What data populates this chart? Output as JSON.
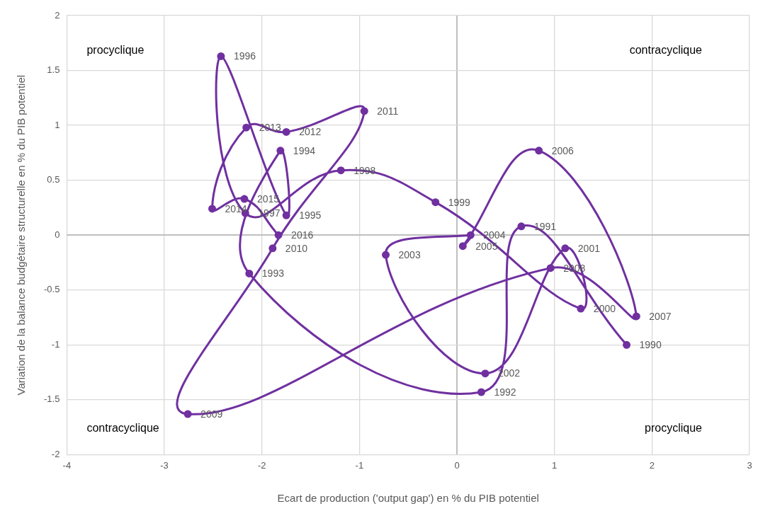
{
  "chart_data": {
    "type": "line",
    "xlabel": "Ecart de production ('output gap') en % du PIB potentiel",
    "ylabel": "Variation de la balance budgétaire structurelle en % du PIB potentiel",
    "x": [
      1.74,
      0.66,
      0.25,
      -2.13,
      -1.81,
      -1.75,
      -2.42,
      -2.17,
      -1.19,
      -0.22,
      1.27,
      1.11,
      0.29,
      -0.73,
      0.14,
      0.06,
      0.84,
      1.84,
      0.96,
      -2.76,
      -1.89,
      -0.95,
      -1.75,
      -2.16,
      -2.51,
      -2.18,
      -1.83
    ],
    "series": [
      {
        "color": "#7030a0",
        "values": [
          -1.0,
          0.08,
          -1.43,
          -0.35,
          0.77,
          0.18,
          1.63,
          0.2,
          0.59,
          0.3,
          -0.67,
          -0.12,
          -1.26,
          -0.18,
          0.0,
          -0.1,
          0.77,
          -0.74,
          -0.3,
          -1.63,
          -0.12,
          1.13,
          0.94,
          0.98,
          0.24,
          0.33,
          0.0
        ]
      }
    ],
    "xlim": [
      -4,
      3
    ],
    "xticks": [
      -4,
      -3,
      -2,
      -1,
      0,
      1,
      2,
      3
    ],
    "ylim": [
      -2,
      2
    ],
    "yticks": [
      -2,
      -1.5,
      -1,
      -0.5,
      0,
      0.5,
      1,
      1.5,
      2
    ],
    "grid": true,
    "legend": false,
    "marker": "circle",
    "line_style": "solid",
    "annotations": [
      "procyclique",
      "contracyclique",
      "contracyclique",
      "procyclique",
      {
        "text": "1990",
        "x": 1.74,
        "y": -1.0
      },
      {
        "text": "1991",
        "x": 0.66,
        "y": 0.08
      },
      {
        "text": "1992",
        "x": 0.25,
        "y": -1.43
      },
      {
        "text": "1993",
        "x": -2.13,
        "y": -0.35
      },
      {
        "text": "1994",
        "x": -1.81,
        "y": 0.77
      },
      {
        "text": "1995",
        "x": -1.75,
        "y": 0.18
      },
      {
        "text": "1996",
        "x": -2.42,
        "y": 1.63
      },
      {
        "text": "1997",
        "x": -2.17,
        "y": 0.2
      },
      {
        "text": "1998",
        "x": -1.19,
        "y": 0.59
      },
      {
        "text": "1999",
        "x": -0.22,
        "y": 0.3
      },
      {
        "text": "2000",
        "x": 1.27,
        "y": -0.67
      },
      {
        "text": "2001",
        "x": 1.11,
        "y": -0.12
      },
      {
        "text": "2002",
        "x": 0.29,
        "y": -1.26
      },
      {
        "text": "2003",
        "x": -0.73,
        "y": -0.18
      },
      {
        "text": "2004",
        "x": 0.14,
        "y": 0.0
      },
      {
        "text": "2005",
        "x": 0.06,
        "y": -0.1
      },
      {
        "text": "2006",
        "x": 0.84,
        "y": 0.77
      },
      {
        "text": "2007",
        "x": 1.84,
        "y": -0.74
      },
      {
        "text": "2008",
        "x": 0.96,
        "y": -0.3
      },
      {
        "text": "2009",
        "x": -2.76,
        "y": -1.63
      },
      {
        "text": "2010",
        "x": -1.89,
        "y": -0.12
      },
      {
        "text": "2011",
        "x": -0.95,
        "y": 1.13
      },
      {
        "text": "2012",
        "x": -1.75,
        "y": 0.94
      },
      {
        "text": "2013",
        "x": -2.16,
        "y": 0.98
      },
      {
        "text": "2014",
        "x": -2.51,
        "y": 0.24
      },
      {
        "text": "2015",
        "x": -2.18,
        "y": 0.33
      },
      {
        "text": "2016",
        "x": -1.83,
        "y": 0.0
      }
    ]
  }
}
